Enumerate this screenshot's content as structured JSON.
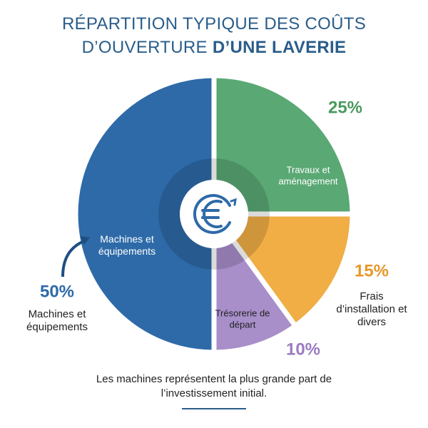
{
  "chart_data": {
    "type": "pie",
    "title": {
      "line1": "RÉPARTITION TYPIQUE DES COÛTS",
      "line2": "D’OUVERTURE",
      "line2_bold": "D’UNE LAVERIE"
    },
    "categories": [
      "Travaux et aménagement",
      "Frais d’installation et divers",
      "Trésorerie de départ",
      "Machines et équipements"
    ],
    "values": [
      25,
      15,
      10,
      50
    ],
    "value_labels": [
      "25%",
      "15%",
      "10%",
      "50%"
    ],
    "colors": [
      "#5aa874",
      "#f0ae45",
      "#a88fca",
      "#2e6aa8"
    ],
    "label_colors": [
      "#4a9a5e",
      "#e8972a",
      "#9b7cc0",
      "#2e6aa8"
    ],
    "footnote": "Les machines représentent la plus grande part de l’investissement initial."
  }
}
